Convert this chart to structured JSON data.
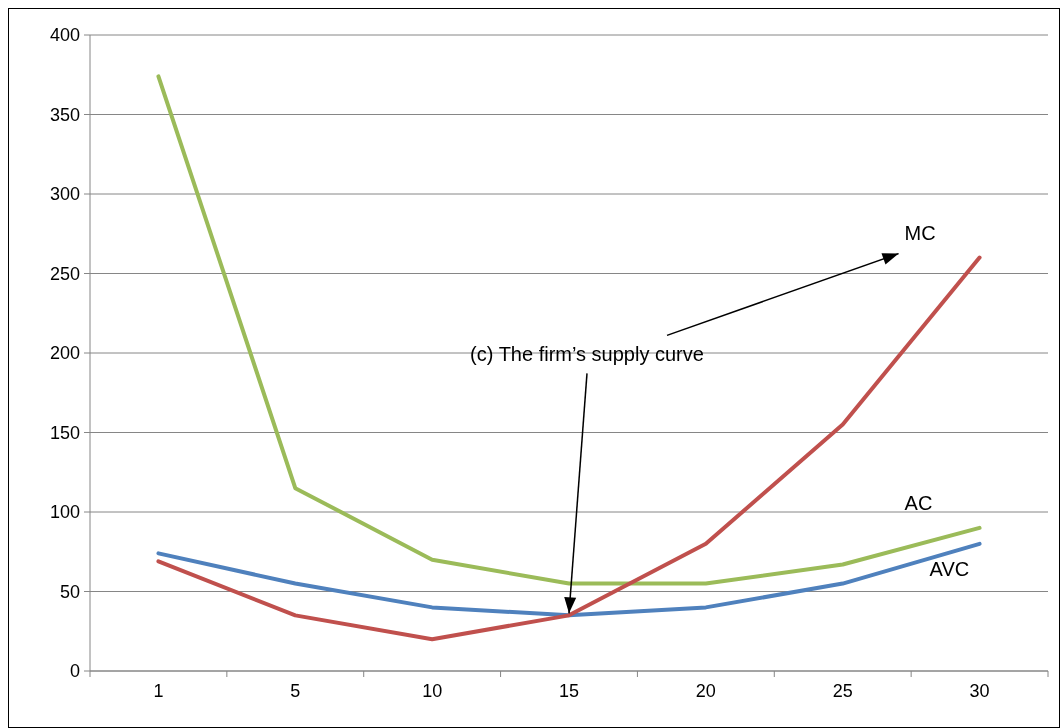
{
  "chart_data": {
    "type": "line",
    "categories": [
      "1",
      "5",
      "10",
      "15",
      "20",
      "25",
      "30"
    ],
    "series": [
      {
        "name": "AC",
        "color": "#9bbb59",
        "values": [
          374,
          115,
          70,
          55,
          55,
          67,
          90
        ]
      },
      {
        "name": "AVC",
        "color": "#4f81bd",
        "values": [
          74,
          55,
          40,
          35,
          40,
          55,
          80
        ]
      },
      {
        "name": "MC",
        "color": "#c0504d",
        "values": [
          69,
          35,
          20,
          35,
          80,
          155,
          260
        ]
      }
    ],
    "ylim": [
      0,
      400
    ],
    "yticks": [
      0,
      50,
      100,
      150,
      200,
      250,
      300,
      350,
      400
    ],
    "grid": "y",
    "line_style": "solid",
    "annotations": [
      {
        "text": "(c) The firm’s supply curve",
        "x": "15",
        "y": 35
      }
    ]
  }
}
